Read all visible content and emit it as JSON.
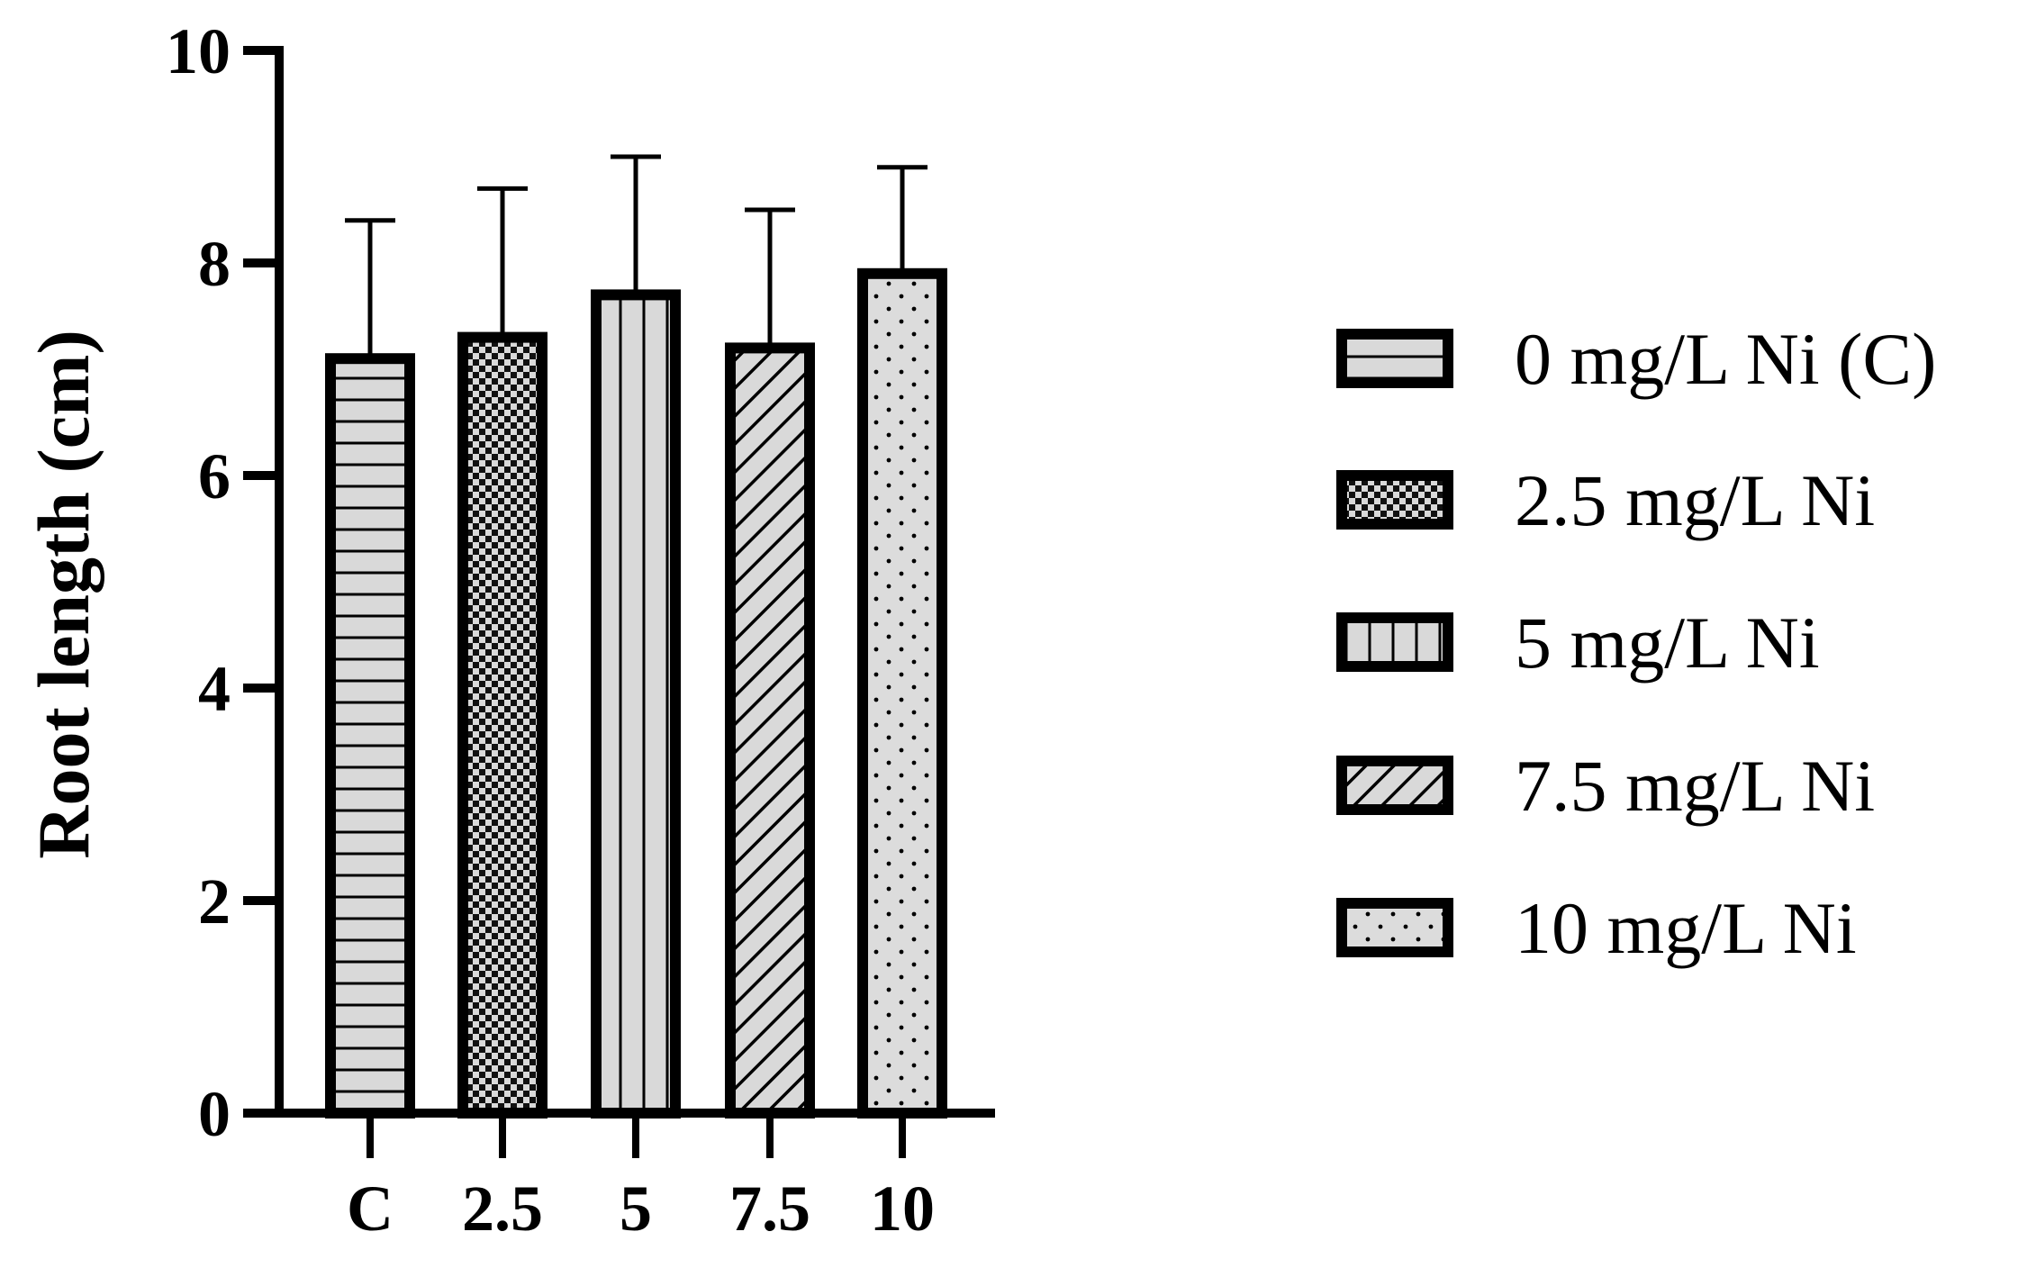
{
  "chart_data": {
    "type": "bar",
    "title": "",
    "xlabel": "",
    "ylabel": "Root length (cm)",
    "ylim": [
      0,
      10
    ],
    "yticks": [
      0,
      2,
      4,
      6,
      8,
      10
    ],
    "categories": [
      "C",
      "2.5",
      "5",
      "7.5",
      "10"
    ],
    "values": [
      7.1,
      7.3,
      7.7,
      7.2,
      7.9
    ],
    "errors": [
      1.3,
      1.4,
      1.3,
      1.3,
      1.0
    ],
    "series_names": [
      "0 mg/L Ni (C)",
      "2.5 mg/L Ni",
      "5 mg/L Ni",
      "7.5 mg/L Ni",
      "10 mg/L Ni"
    ],
    "patterns": [
      "horizontal-lines",
      "checkerboard",
      "vertical-lines",
      "diagonal-lines",
      "dots"
    ],
    "bar_fill": "#d9d9d9",
    "bar_edge": "#000000",
    "legend_position": "right",
    "grid": false
  }
}
